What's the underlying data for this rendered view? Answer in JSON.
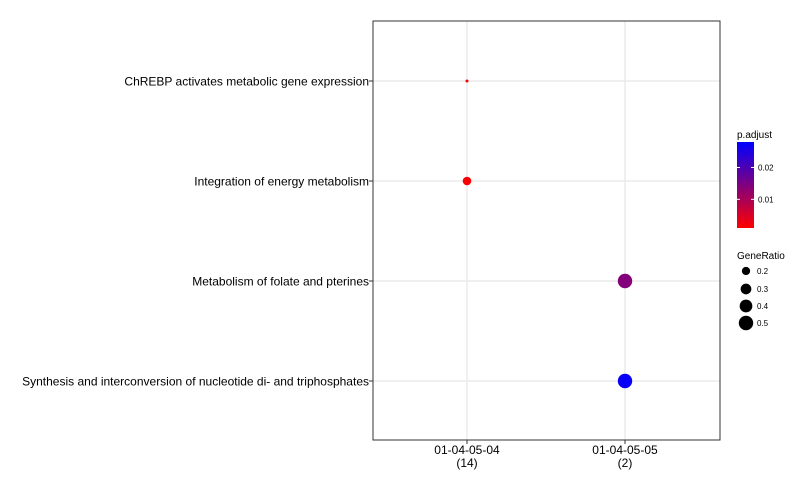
{
  "chart_data": {
    "type": "scatter",
    "categories_x": [
      {
        "label": "01-04-05-04",
        "count": "(14)"
      },
      {
        "label": "01-04-05-05",
        "count": "(2)"
      }
    ],
    "categories_y": [
      "ChREBP activates metabolic gene expression",
      "Integration of energy metabolism",
      "Metabolism of folate and pterines",
      "Synthesis and interconversion of nucleotide di- and triphosphates"
    ],
    "points": [
      {
        "x": "01-04-05-04",
        "y": "ChREBP activates metabolic gene expression",
        "gene_ratio": 0.07,
        "p_adjust": 0.0015
      },
      {
        "x": "01-04-05-04",
        "y": "Integration of energy metabolism",
        "gene_ratio": 0.21,
        "p_adjust": 0.0015
      },
      {
        "x": "01-04-05-05",
        "y": "Metabolism of folate and pterines",
        "gene_ratio": 0.5,
        "p_adjust": 0.014
      },
      {
        "x": "01-04-05-05",
        "y": "Synthesis and interconversion of nucleotide di- and triphosphates",
        "gene_ratio": 0.5,
        "p_adjust": 0.027
      }
    ],
    "color_legend": {
      "title": "p.adjust",
      "range": [
        0.001,
        0.028
      ],
      "low_color": "#ff0000",
      "high_color": "#0000ff",
      "ticks": [
        {
          "value": 0.01,
          "label": "0.01"
        },
        {
          "value": 0.02,
          "label": "0.02"
        }
      ]
    },
    "size_legend": {
      "title": "GeneRatio",
      "range": [
        0.07,
        0.5
      ],
      "entries": [
        {
          "value": 0.2,
          "label": "0.2"
        },
        {
          "value": 0.3,
          "label": "0.3"
        },
        {
          "value": 0.4,
          "label": "0.4"
        },
        {
          "value": 0.5,
          "label": "0.5"
        }
      ]
    },
    "grid": true
  },
  "colors": {
    "background": "#ffffff",
    "panel_border": "#333333",
    "gridline": "#ebebeb",
    "text": "#000000"
  }
}
